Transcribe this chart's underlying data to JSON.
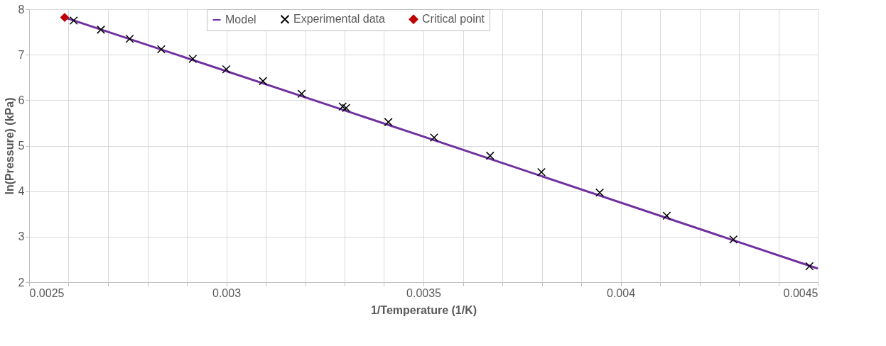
{
  "chart_data": {
    "type": "scatter",
    "xlabel": "1/Temperature (1/K)",
    "ylabel": "ln(Pressure) (kPa)",
    "series": [
      {
        "name": "Model",
        "type": "line",
        "color": "#7030a0",
        "marker": "none",
        "line_style": "solid",
        "x": [
          0.00259,
          0.0035,
          0.0045
        ],
        "values": [
          7.82,
          5.2,
          2.3
        ]
      },
      {
        "name": "Experimental data",
        "type": "scatter",
        "color": "#000000",
        "marker": "cross",
        "x": [
          0.002613,
          0.002682,
          0.002755,
          0.002835,
          0.002915,
          0.003,
          0.003093,
          0.003191,
          0.003295,
          0.003304,
          0.003411,
          0.003527,
          0.003669,
          0.003799,
          0.003947,
          0.004117,
          0.004286,
          0.004479
        ],
        "values": [
          7.75,
          7.55,
          7.35,
          7.12,
          6.91,
          6.68,
          6.42,
          6.14,
          5.86,
          5.83,
          5.52,
          5.18,
          4.78,
          4.42,
          3.97,
          3.46,
          2.94,
          2.35
        ]
      },
      {
        "name": "Critical point",
        "type": "scatter",
        "color": "#c00000",
        "marker": "diamond",
        "x": [
          0.00259
        ],
        "values": [
          7.82
        ]
      }
    ],
    "xlim": [
      0.0025,
      0.0045
    ],
    "xticks": [
      0.0025,
      {
        "value": 0.0026,
        "label": null
      },
      {
        "value": 0.0027,
        "label": null
      },
      {
        "value": 0.0028,
        "label": null
      },
      {
        "value": 0.0029,
        "label": null
      },
      0.003,
      {
        "value": 0.0031,
        "label": null
      },
      {
        "value": 0.0032,
        "label": null
      },
      {
        "value": 0.0033,
        "label": null
      },
      {
        "value": 0.0034,
        "label": null
      },
      0.0035,
      {
        "value": 0.0036,
        "label": null
      },
      {
        "value": 0.0037,
        "label": null
      },
      {
        "value": 0.0038,
        "label": null
      },
      {
        "value": 0.0039,
        "label": null
      },
      0.004,
      {
        "value": 0.0041,
        "label": null
      },
      {
        "value": 0.0042,
        "label": null
      },
      {
        "value": 0.0043,
        "label": null
      },
      {
        "value": 0.0044,
        "label": null
      },
      0.0045
    ],
    "ylim": [
      2,
      8
    ],
    "yticks": [
      2,
      3,
      4,
      5,
      6,
      7,
      8
    ],
    "grid": true,
    "legend": "top"
  }
}
